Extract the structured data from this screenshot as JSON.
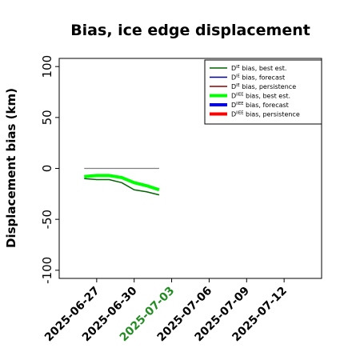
{
  "chart_data": {
    "type": "line",
    "title": "Bias, ice edge displacement",
    "xlabel": "",
    "ylabel": "Displacement bias (km)",
    "ylim": [
      -108,
      108
    ],
    "yticks": [
      100,
      50,
      0,
      -50,
      -100
    ],
    "xlim": [
      "2025-06-24",
      "2025-07-15"
    ],
    "xticks": [
      "2025-06-27",
      "2025-06-30",
      "2025-07-03",
      "2025-07-06",
      "2025-07-09",
      "2025-07-12"
    ],
    "xtick_colors": [
      "#000000",
      "#000000",
      "#228b22",
      "#000000",
      "#000000",
      "#000000"
    ],
    "grid": false,
    "legend_position": "top-right",
    "series": [
      {
        "name_prefix": "D",
        "name_sup": "IE",
        "name_suffix": " bias, best est.",
        "color": "#006400",
        "width": 1.5,
        "x": [
          "2025-06-26",
          "2025-06-27",
          "2025-06-28",
          "2025-06-29",
          "2025-06-30",
          "2025-07-01",
          "2025-07-02"
        ],
        "values": [
          -10,
          -11,
          -11,
          -14,
          -21,
          -23,
          -26
        ]
      },
      {
        "name_prefix": "D",
        "name_sup": "IE",
        "name_suffix": " bias, forecast",
        "color": "#00008b",
        "width": 1.5,
        "x": [],
        "values": []
      },
      {
        "name_prefix": "D",
        "name_sup": "IE",
        "name_suffix": " bias, persistence",
        "color": "#8b0000",
        "width": 1.5,
        "x": [],
        "values": []
      },
      {
        "name_prefix": "D",
        "name_sup": "IIEE",
        "name_suffix": " bias, best est.",
        "color": "#00ff00",
        "width": 4,
        "x": [
          "2025-06-26",
          "2025-06-27",
          "2025-06-28",
          "2025-06-29",
          "2025-06-30",
          "2025-07-01",
          "2025-07-02"
        ],
        "values": [
          -8,
          -7,
          -7,
          -9,
          -14,
          -17,
          -21
        ]
      },
      {
        "name_prefix": "D",
        "name_sup": "IIEE",
        "name_suffix": " bias, forecast",
        "color": "#0000ff",
        "width": 4,
        "x": [],
        "values": []
      },
      {
        "name_prefix": "D",
        "name_sup": "IIEE",
        "name_suffix": " bias, persistence",
        "color": "#ff0000",
        "width": 4,
        "x": [],
        "values": []
      }
    ],
    "reference_line": {
      "color": "#808080",
      "x": [
        "2025-06-26",
        "2025-07-02"
      ],
      "values": [
        0,
        0
      ]
    }
  }
}
